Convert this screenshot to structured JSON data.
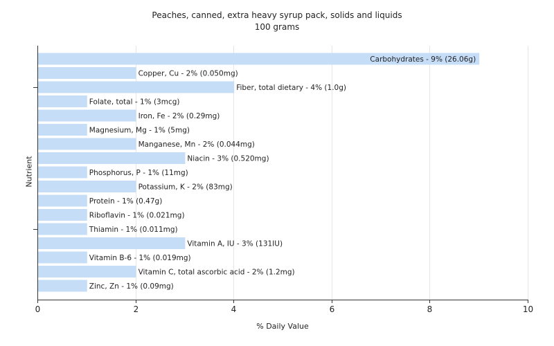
{
  "chart_data": {
    "type": "bar",
    "orientation": "horizontal",
    "title": "Peaches, canned, extra heavy syrup pack, solids and liquids",
    "subtitle": "100 grams",
    "xlabel": "% Daily Value",
    "ylabel": "Nutrient",
    "xlim": [
      0,
      10
    ],
    "xticks": [
      0,
      2,
      4,
      6,
      8,
      10
    ],
    "grid": true,
    "bar_color": "#c6ddf8",
    "categories": [
      "Carbohydrates",
      "Copper, Cu",
      "Fiber, total dietary",
      "Folate, total",
      "Iron, Fe",
      "Magnesium, Mg",
      "Manganese, Mn",
      "Niacin",
      "Phosphorus, P",
      "Potassium, K",
      "Protein",
      "Riboflavin",
      "Thiamin",
      "Vitamin A, IU",
      "Vitamin B-6",
      "Vitamin C, total ascorbic acid",
      "Zinc, Zn"
    ],
    "values": [
      9,
      2,
      4,
      1,
      2,
      1,
      2,
      3,
      1,
      2,
      1,
      1,
      1,
      3,
      1,
      2,
      1
    ],
    "labels": [
      "Carbohydrates - 9% (26.06g)",
      "Copper, Cu - 2% (0.050mg)",
      "Fiber, total dietary - 4% (1.0g)",
      "Folate, total - 1% (3mcg)",
      "Iron, Fe - 2% (0.29mg)",
      "Magnesium, Mg - 1% (5mg)",
      "Manganese, Mn - 2% (0.044mg)",
      "Niacin - 3% (0.520mg)",
      "Phosphorus, P - 1% (11mg)",
      "Potassium, K - 2% (83mg)",
      "Protein - 1% (0.47g)",
      "Riboflavin - 1% (0.021mg)",
      "Thiamin - 1% (0.011mg)",
      "Vitamin A, IU - 3% (131IU)",
      "Vitamin B-6 - 1% (0.019mg)",
      "Vitamin C, total ascorbic acid - 2% (1.2mg)",
      "Zinc, Zn - 1% (0.09mg)"
    ]
  }
}
